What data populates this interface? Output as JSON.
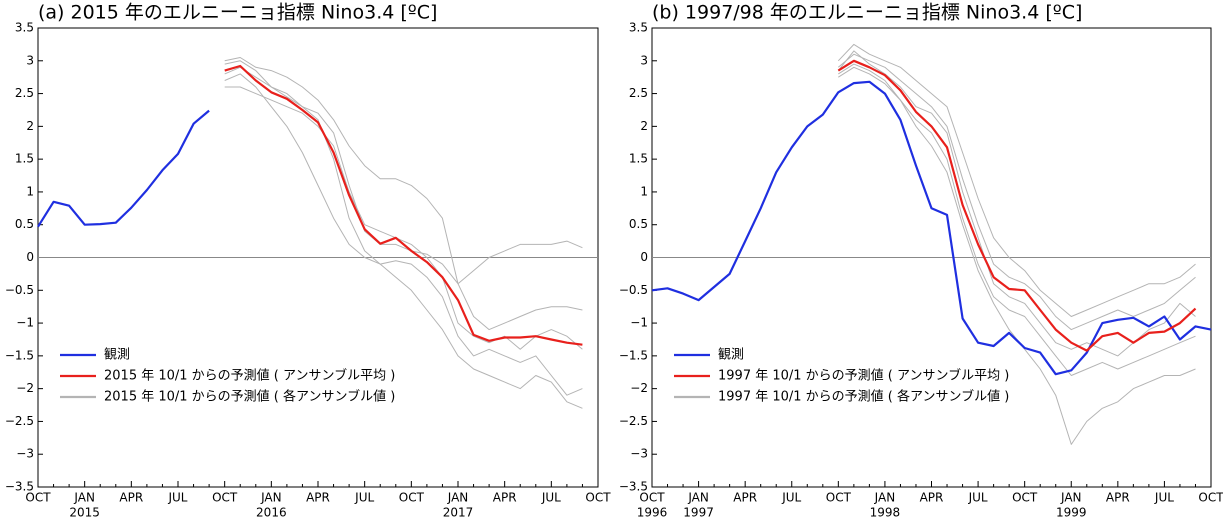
{
  "chart_data": [
    {
      "type": "line",
      "title": "(a) 2015 年のエルニーニョ指標 Nino3.4 [ºC]",
      "categories": [
        "OCT",
        null,
        null,
        "JAN",
        null,
        null,
        "APR",
        null,
        null,
        "JUL",
        null,
        null,
        "OCT",
        null,
        null,
        "JAN",
        null,
        null,
        "APR",
        null,
        null,
        "JUL",
        null,
        null,
        "OCT",
        null,
        null,
        "JAN",
        null,
        null,
        "APR",
        null,
        null,
        "JUL",
        null,
        null,
        "OCT"
      ],
      "category_years": [
        null,
        null,
        null,
        "2015",
        null,
        null,
        null,
        null,
        null,
        null,
        null,
        null,
        null,
        null,
        null,
        "2016",
        null,
        null,
        null,
        null,
        null,
        null,
        null,
        null,
        null,
        null,
        null,
        "2017",
        null,
        null,
        null,
        null,
        null,
        null,
        null,
        null,
        null
      ],
      "ylim": [
        -3.5,
        3.5
      ],
      "yticks": [
        {
          "value": -3.5,
          "label": "−3.5"
        },
        {
          "value": -3,
          "label": "−3"
        },
        {
          "value": -2.5,
          "label": "−2.5"
        },
        {
          "value": -2,
          "label": "−2"
        },
        {
          "value": -1.5,
          "label": "−1.5"
        },
        {
          "value": -1,
          "label": "−1"
        },
        {
          "value": -0.5,
          "label": "−0.5"
        },
        0,
        0.5,
        1,
        1.5,
        2,
        2.5,
        3,
        3.5
      ],
      "hline": 0,
      "series": [
        {
          "name": "観測",
          "color": "#1f2fe0",
          "values": [
            0.47,
            0.85,
            0.79,
            0.5,
            0.51,
            0.53,
            0.76,
            1.03,
            1.33,
            1.58,
            2.04,
            2.24,
            null,
            null,
            null,
            null,
            null,
            null,
            null,
            null,
            null,
            null,
            null,
            null,
            null,
            null,
            null,
            null,
            null,
            null,
            null,
            null,
            null,
            null,
            null,
            null,
            null
          ]
        },
        {
          "name": "2015 年 10/1 からの予測値 ( アンサンブル平均 )",
          "color": "#e8201c",
          "values": [
            null,
            null,
            null,
            null,
            null,
            null,
            null,
            null,
            null,
            null,
            null,
            null,
            2.85,
            2.92,
            2.7,
            2.52,
            2.42,
            2.25,
            2.06,
            1.6,
            0.95,
            0.43,
            0.21,
            0.3,
            0.1,
            -0.07,
            -0.3,
            -0.65,
            -1.18,
            -1.27,
            -1.22,
            -1.22,
            -1.2,
            -1.25,
            -1.3,
            -1.33,
            null
          ]
        }
      ],
      "members": {
        "name": "2015 年 10/1 からの予測値 ( 各アンサンブル値 )",
        "color": "#b4b4b4",
        "values": [
          [
            null,
            null,
            null,
            null,
            null,
            null,
            null,
            null,
            null,
            null,
            null,
            null,
            3.0,
            3.05,
            2.9,
            2.85,
            2.75,
            2.6,
            2.4,
            2.1,
            1.7,
            1.4,
            1.2,
            1.2,
            1.1,
            0.9,
            0.6,
            -0.4,
            -0.9,
            -1.1,
            -1.0,
            -0.9,
            -0.8,
            -0.75,
            -0.75,
            -0.8,
            null
          ],
          [
            null,
            null,
            null,
            null,
            null,
            null,
            null,
            null,
            null,
            null,
            null,
            null,
            2.7,
            2.8,
            2.6,
            2.3,
            2.0,
            1.6,
            1.1,
            0.6,
            0.2,
            0.0,
            -0.1,
            -0.3,
            -0.5,
            -0.8,
            -1.1,
            -1.5,
            -1.7,
            -1.8,
            -1.9,
            -2.0,
            -1.8,
            -1.9,
            -2.2,
            -2.3,
            null
          ],
          [
            null,
            null,
            null,
            null,
            null,
            null,
            null,
            null,
            null,
            null,
            null,
            null,
            2.95,
            3.0,
            2.85,
            2.6,
            2.5,
            2.3,
            2.2,
            1.9,
            1.1,
            0.4,
            0.2,
            0.2,
            0.1,
            0.05,
            -0.1,
            -0.4,
            -0.2,
            0.0,
            0.1,
            0.2,
            0.2,
            0.2,
            0.25,
            0.15,
            null
          ],
          [
            null,
            null,
            null,
            null,
            null,
            null,
            null,
            null,
            null,
            null,
            null,
            null,
            2.8,
            2.9,
            2.75,
            2.6,
            2.45,
            2.3,
            2.1,
            1.5,
            0.6,
            0.1,
            -0.1,
            -0.05,
            -0.1,
            -0.3,
            -0.6,
            -1.2,
            -1.5,
            -1.4,
            -1.5,
            -1.6,
            -1.5,
            -1.8,
            -2.1,
            -2.0,
            null
          ],
          [
            null,
            null,
            null,
            null,
            null,
            null,
            null,
            null,
            null,
            null,
            null,
            null,
            2.6,
            2.6,
            2.5,
            2.4,
            2.3,
            2.2,
            2.0,
            1.7,
            1.0,
            0.5,
            0.4,
            0.3,
            0.2,
            0.0,
            -0.3,
            -1.0,
            -1.2,
            -1.3,
            -1.2,
            -1.4,
            -1.2,
            -1.1,
            -1.2,
            -1.4,
            null
          ]
        ]
      }
    },
    {
      "type": "line",
      "title": "(b) 1997/98 年のエルニーニョ指標 Nino3.4 [ºC]",
      "categories": [
        "OCT",
        null,
        null,
        "JAN",
        null,
        null,
        "APR",
        null,
        null,
        "JUL",
        null,
        null,
        "OCT",
        null,
        null,
        "JAN",
        null,
        null,
        "APR",
        null,
        null,
        "JUL",
        null,
        null,
        "OCT",
        null,
        null,
        "JAN",
        null,
        null,
        "APR",
        null,
        null,
        "JUL",
        null,
        null,
        "OCT"
      ],
      "category_years": [
        "1996",
        null,
        null,
        "1997",
        null,
        null,
        null,
        null,
        null,
        null,
        null,
        null,
        null,
        null,
        null,
        "1998",
        null,
        null,
        null,
        null,
        null,
        null,
        null,
        null,
        null,
        null,
        null,
        "1999",
        null,
        null,
        null,
        null,
        null,
        null,
        null,
        null,
        null
      ],
      "ylim": [
        -3.5,
        3.5
      ],
      "yticks": [
        {
          "value": -3.5,
          "label": "−3.5"
        },
        {
          "value": -3,
          "label": "−3"
        },
        {
          "value": -2.5,
          "label": "−2.5"
        },
        {
          "value": -2,
          "label": "−2"
        },
        {
          "value": -1.5,
          "label": "−1.5"
        },
        {
          "value": -1,
          "label": "−1"
        },
        {
          "value": -0.5,
          "label": "−0.5"
        },
        0,
        0.5,
        1,
        1.5,
        2,
        2.5,
        3,
        3.5
      ],
      "hline": 0,
      "series": [
        {
          "name": "観測",
          "color": "#1f2fe0",
          "values": [
            -0.5,
            -0.47,
            -0.55,
            -0.65,
            -0.45,
            -0.25,
            0.25,
            0.75,
            1.3,
            1.68,
            2.0,
            2.18,
            2.52,
            2.66,
            2.68,
            2.5,
            2.1,
            1.4,
            0.75,
            0.65,
            -0.93,
            -1.3,
            -1.35,
            -1.15,
            -1.38,
            -1.45,
            -1.78,
            -1.72,
            -1.45,
            -1.0,
            -0.95,
            -0.92,
            -1.05,
            -0.9,
            -1.25,
            -1.05,
            -1.1
          ]
        },
        {
          "name": "1997 年 10/1 からの予測値 ( アンサンブル平均 )",
          "color": "#e8201c",
          "values": [
            null,
            null,
            null,
            null,
            null,
            null,
            null,
            null,
            null,
            null,
            null,
            null,
            2.85,
            3.0,
            2.9,
            2.78,
            2.55,
            2.22,
            2.0,
            1.68,
            0.8,
            0.2,
            -0.3,
            -0.48,
            -0.5,
            -0.8,
            -1.1,
            -1.3,
            -1.42,
            -1.2,
            -1.15,
            -1.3,
            -1.15,
            -1.13,
            -1.0,
            -0.78,
            null
          ]
        }
      ],
      "members": {
        "name": "1997 年 10/1 からの予測値 ( 各アンサンブル値 )",
        "color": "#b4b4b4",
        "values": [
          [
            null,
            null,
            null,
            null,
            null,
            null,
            null,
            null,
            null,
            null,
            null,
            null,
            3.0,
            3.25,
            3.1,
            3.0,
            2.9,
            2.7,
            2.5,
            2.3,
            1.6,
            0.9,
            0.3,
            0.0,
            -0.2,
            -0.5,
            -0.7,
            -0.9,
            -0.8,
            -0.7,
            -0.6,
            -0.5,
            -0.4,
            -0.4,
            -0.3,
            -0.1,
            null
          ],
          [
            null,
            null,
            null,
            null,
            null,
            null,
            null,
            null,
            null,
            null,
            null,
            null,
            2.8,
            2.95,
            2.85,
            2.7,
            2.4,
            2.0,
            1.7,
            1.3,
            0.5,
            -0.2,
            -0.7,
            -1.1,
            -1.4,
            -1.7,
            -2.1,
            -2.85,
            -2.5,
            -2.3,
            -2.2,
            -2.0,
            -1.9,
            -1.8,
            -1.8,
            -1.7,
            null
          ],
          [
            null,
            null,
            null,
            null,
            null,
            null,
            null,
            null,
            null,
            null,
            null,
            null,
            2.9,
            3.1,
            3.0,
            2.9,
            2.7,
            2.5,
            2.3,
            2.0,
            1.2,
            0.5,
            -0.1,
            -0.3,
            -0.4,
            -0.6,
            -0.9,
            -1.1,
            -1.0,
            -0.9,
            -0.8,
            -0.9,
            -0.8,
            -0.7,
            -0.5,
            -0.3,
            null
          ],
          [
            null,
            null,
            null,
            null,
            null,
            null,
            null,
            null,
            null,
            null,
            null,
            null,
            2.75,
            2.9,
            2.8,
            2.65,
            2.4,
            2.1,
            1.9,
            1.5,
            0.6,
            -0.1,
            -0.6,
            -0.8,
            -0.9,
            -1.2,
            -1.5,
            -1.8,
            -1.7,
            -1.6,
            -1.7,
            -1.6,
            -1.5,
            -1.4,
            -1.3,
            -1.2,
            null
          ],
          [
            null,
            null,
            null,
            null,
            null,
            null,
            null,
            null,
            null,
            null,
            null,
            null,
            2.85,
            3.15,
            2.95,
            2.8,
            2.6,
            2.3,
            2.2,
            1.9,
            1.0,
            0.3,
            -0.4,
            -0.6,
            -0.7,
            -1.0,
            -1.3,
            -1.4,
            -1.3,
            -1.4,
            -1.5,
            -1.3,
            -1.1,
            -1.0,
            -0.7,
            -0.9,
            null
          ]
        ]
      }
    }
  ]
}
